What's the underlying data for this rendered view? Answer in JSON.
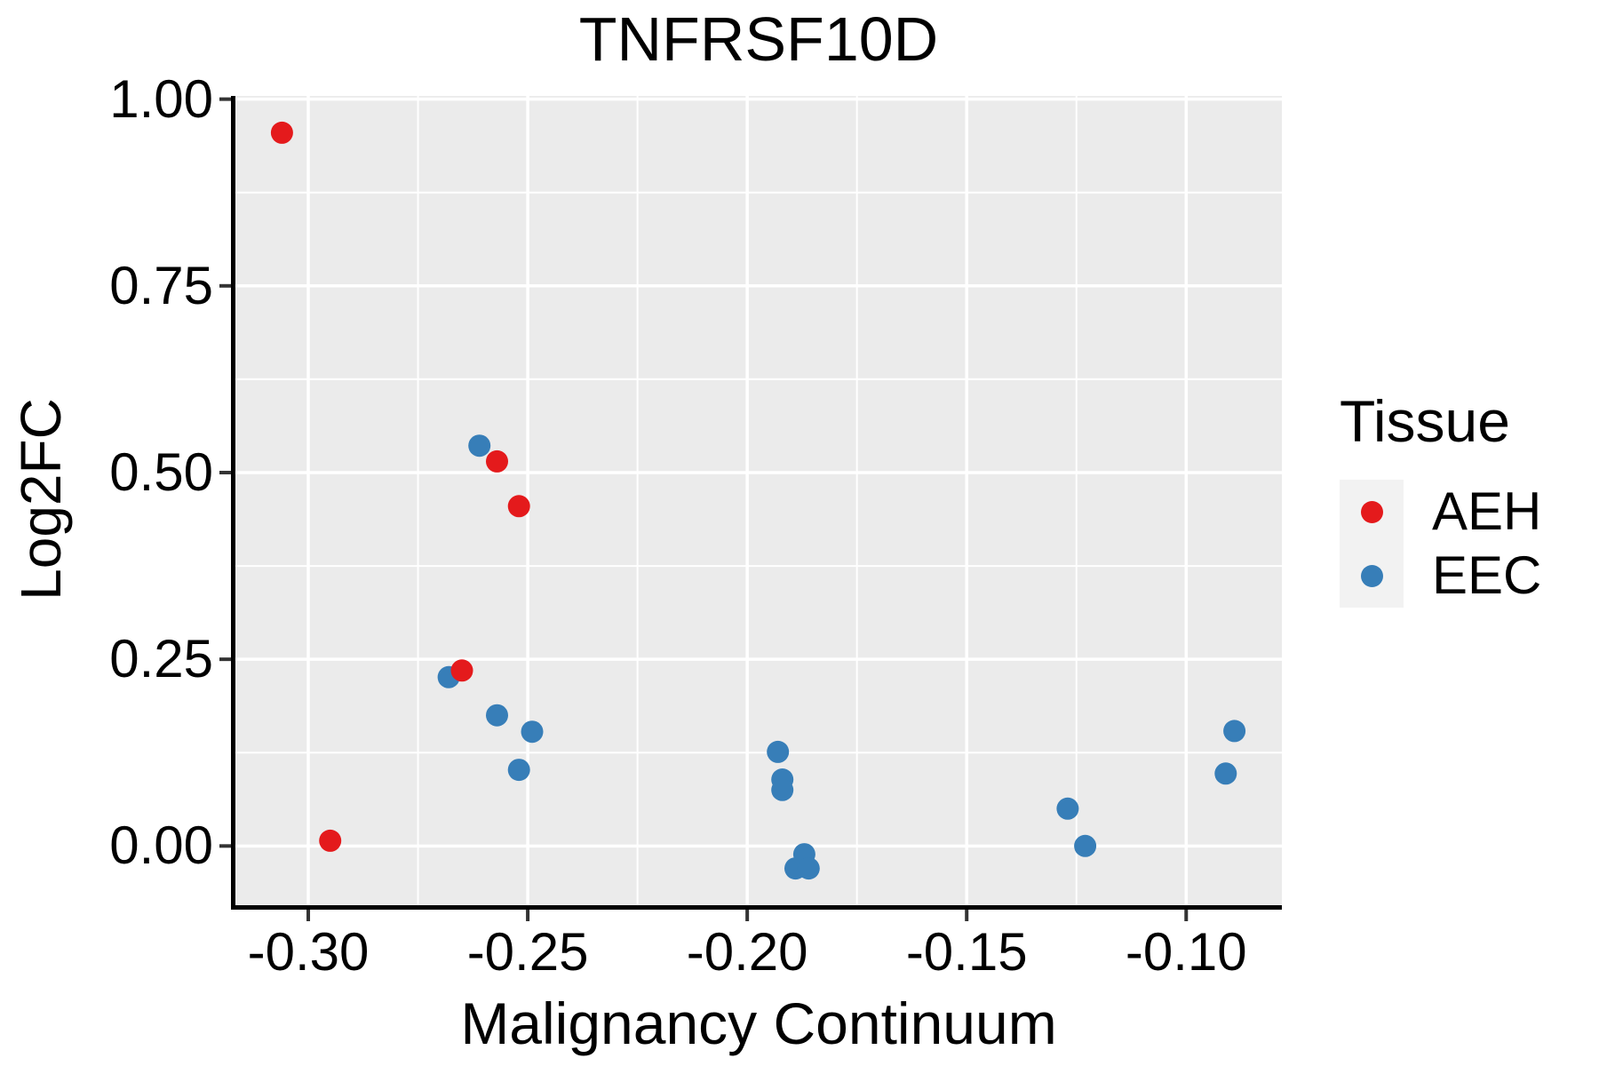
{
  "chart_data": {
    "type": "scatter",
    "title": "TNFRSF10D",
    "xlabel": "Malignancy Continuum",
    "ylabel": "Log2FC",
    "x_axis": {
      "range": [
        -0.3166,
        -0.0782
      ],
      "ticks": [
        -0.3,
        -0.25,
        -0.2,
        -0.15,
        -0.1
      ],
      "tick_labels": [
        "-0.30",
        "-0.25",
        "-0.20",
        "-0.15",
        "-0.10"
      ]
    },
    "y_axis": {
      "range": [
        -0.0793,
        1.0043
      ],
      "ticks": [
        0.0,
        0.25,
        0.5,
        0.75,
        1.0
      ],
      "tick_labels": [
        "0.00",
        "0.25",
        "0.50",
        "0.75",
        "1.00"
      ]
    },
    "grid": {
      "major": true,
      "minor": true
    },
    "legend": {
      "title": "Tissue",
      "position": "right"
    },
    "series": [
      {
        "name": "AEH",
        "color": "#E41A1C",
        "points": [
          [
            -0.306,
            0.955
          ],
          [
            -0.295,
            0.007
          ],
          [
            -0.265,
            0.235
          ],
          [
            -0.257,
            0.515
          ],
          [
            -0.252,
            0.455
          ]
        ]
      },
      {
        "name": "EEC",
        "color": "#377EB8",
        "points": [
          [
            -0.268,
            0.226
          ],
          [
            -0.261,
            0.536
          ],
          [
            -0.257,
            0.175
          ],
          [
            -0.252,
            0.102
          ],
          [
            -0.249,
            0.153
          ],
          [
            -0.193,
            0.126
          ],
          [
            -0.192,
            0.089
          ],
          [
            -0.192,
            0.075
          ],
          [
            -0.189,
            -0.03
          ],
          [
            -0.187,
            -0.011
          ],
          [
            -0.186,
            -0.03
          ],
          [
            -0.127,
            0.05
          ],
          [
            -0.123,
            0.0
          ],
          [
            -0.091,
            0.097
          ],
          [
            -0.089,
            0.154
          ]
        ]
      }
    ],
    "styles": {
      "panel_bg": "#EBEBEB",
      "grid_color": "#FFFFFF",
      "axis_line_color": "#000000",
      "tick_color": "#333333",
      "legend_key_bg": "#F2F2F2",
      "point_radius_px": 12.5
    }
  }
}
